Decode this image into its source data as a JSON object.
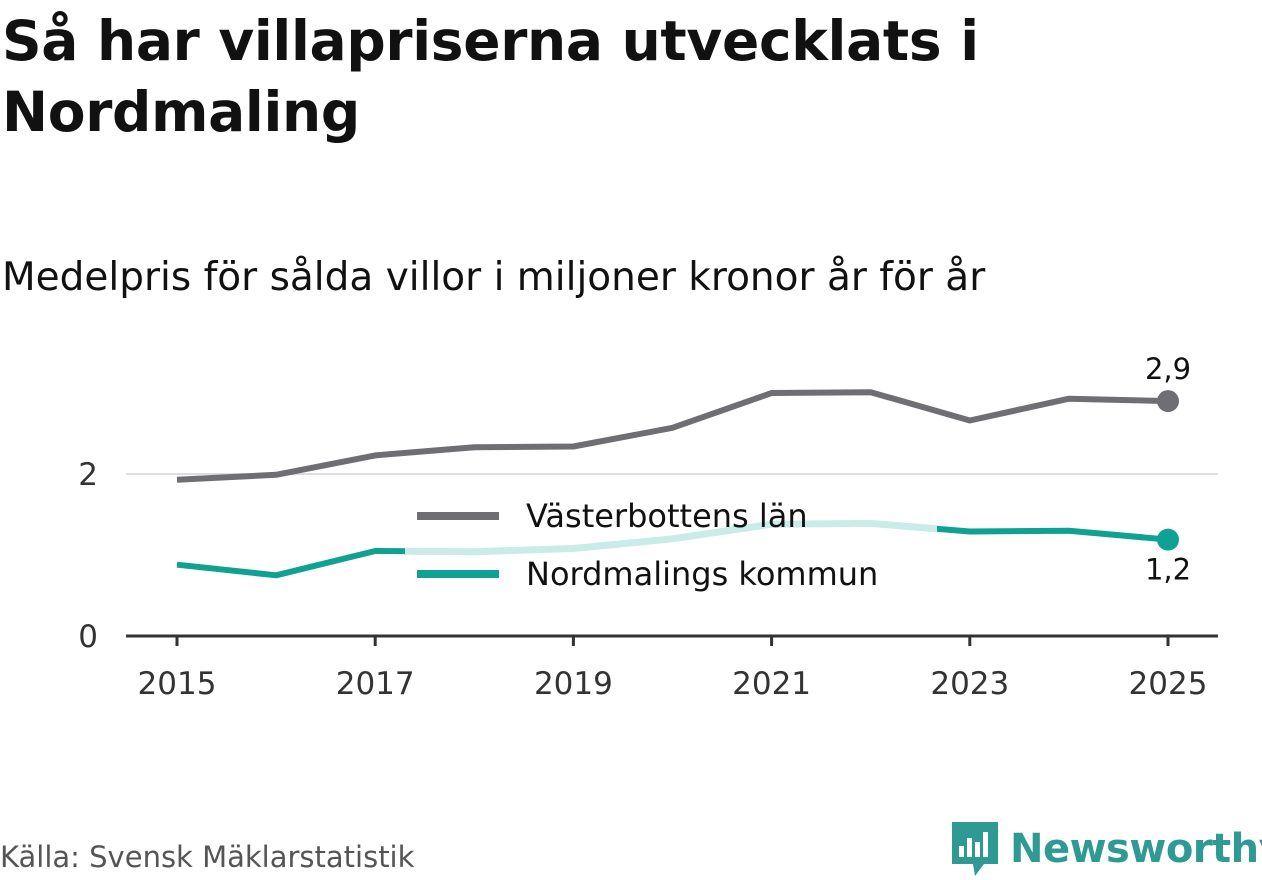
{
  "title": "Så har villapriserna utvecklats i Nordmaling",
  "subtitle": "Medelpris för sålda villor i miljoner kronor år för år",
  "source": "Källa: Svensk Mäklarstatistik",
  "brand": "Newsworthy",
  "colors": {
    "vasterbotten": "#6f6e73",
    "nordmaling": "#10a195",
    "nordmaling_light": "#c9ece8",
    "grid": "#dddddd",
    "axis": "#333333",
    "brand": "#2e9a93"
  },
  "chart_data": {
    "type": "line",
    "x": [
      2015,
      2016,
      2017,
      2018,
      2019,
      2020,
      2021,
      2022,
      2023,
      2024,
      2025
    ],
    "xticks": [
      "2015",
      "2017",
      "2019",
      "2021",
      "2023",
      "2025"
    ],
    "yticks": [
      "0",
      "2"
    ],
    "ylim": [
      0,
      3.2
    ],
    "series": [
      {
        "name": "Västerbottens län",
        "values": [
          1.93,
          1.99,
          2.23,
          2.33,
          2.34,
          2.57,
          3.0,
          3.01,
          2.66,
          2.93,
          2.9
        ],
        "end_label": "2,9"
      },
      {
        "name": "Nordmalings kommun",
        "values": [
          0.88,
          0.75,
          1.05,
          1.04,
          1.08,
          1.2,
          1.38,
          1.39,
          1.29,
          1.3,
          1.19
        ],
        "end_label": "1,2"
      }
    ],
    "legend_position": "center"
  }
}
